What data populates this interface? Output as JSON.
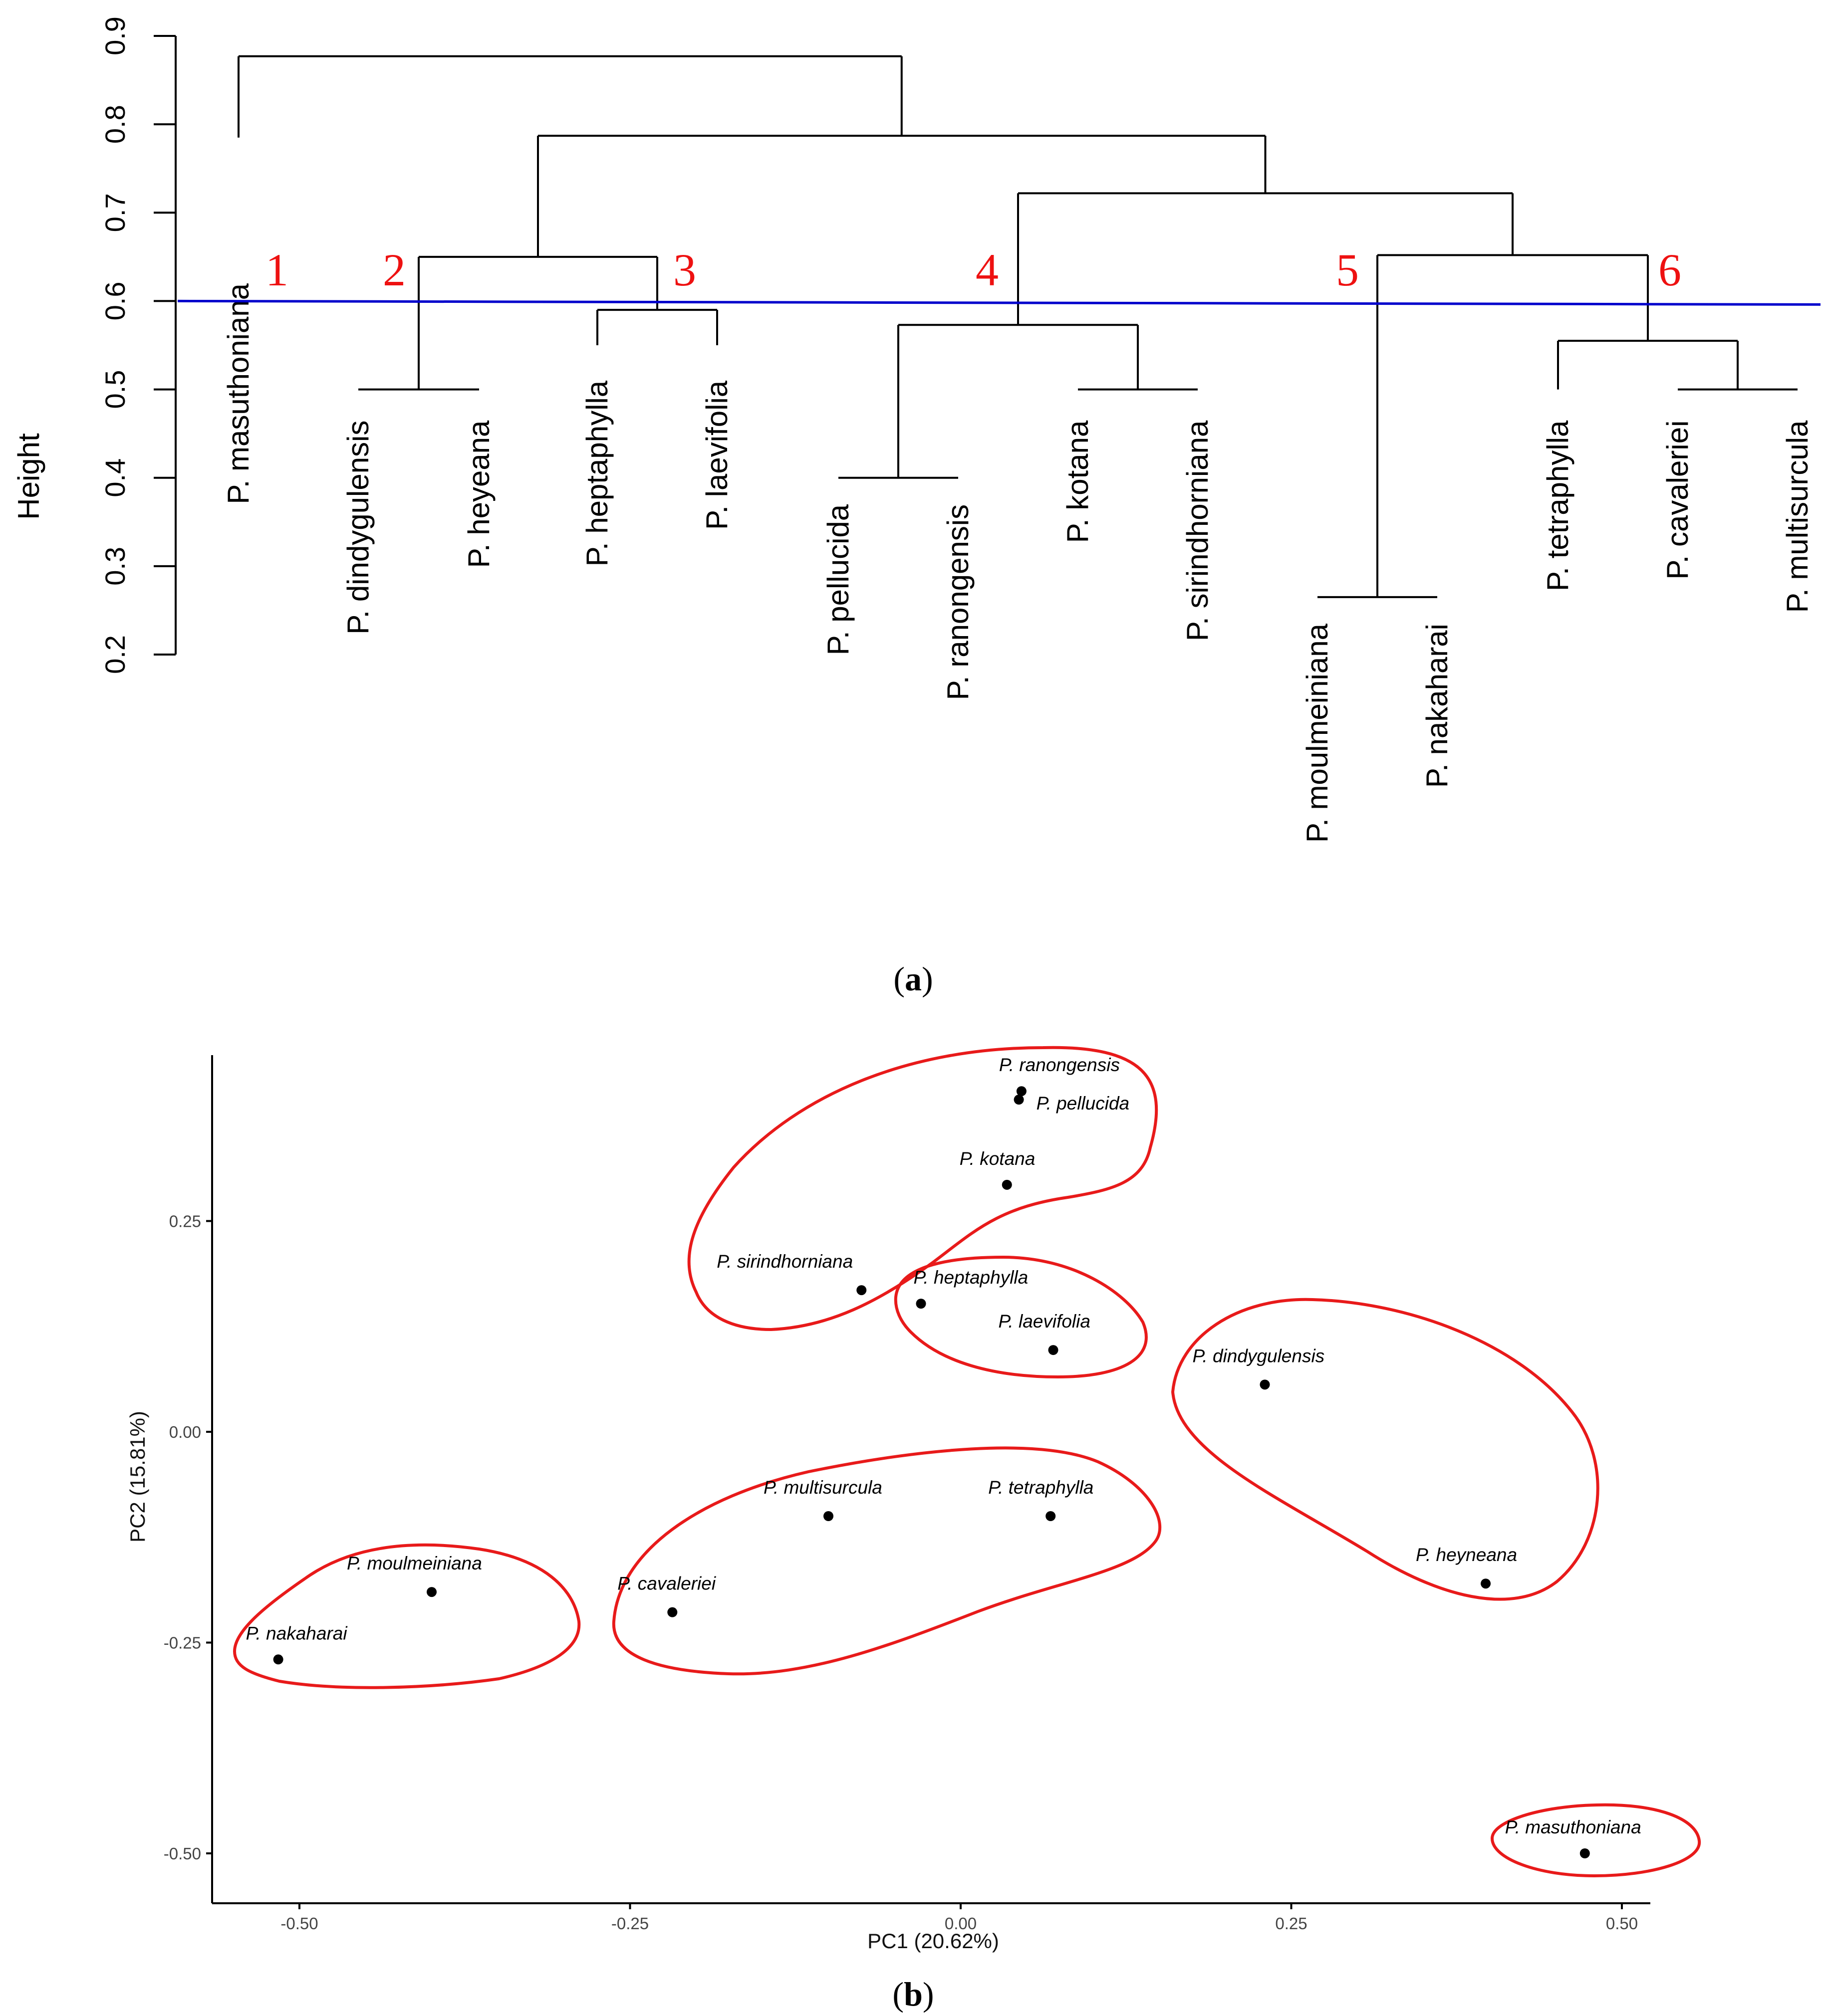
{
  "panel_a_label": "a",
  "panel_b_label": "b",
  "chart_data": [
    {
      "type": "dendrogram",
      "ylabel": "Height",
      "ylim": [
        0.2,
        0.9
      ],
      "yticks": [
        "0.2",
        "0.3",
        "0.4",
        "0.5",
        "0.6",
        "0.7",
        "0.8",
        "0.9"
      ],
      "cut_height": 0.6,
      "leaves": [
        "P. masuthoniana",
        "P. dindygulensis",
        "P. heyeana",
        "P. heptaphylla",
        "P. laevifolia",
        "P. pellucida",
        "P. ranongensis",
        "P. kotana",
        "P. sirindhorniana",
        "P. moulmeiniana",
        "P. nakaharai",
        "P. tetraphylla",
        "P. cavaleriei",
        "P. multisurcula"
      ],
      "merges": [
        {
          "a": "P. dindygulensis",
          "b": "P. heyeana",
          "height": 0.5
        },
        {
          "a": "P. heptaphylla",
          "b": "P. laevifolia",
          "height": 0.59
        },
        {
          "a": "P. pellucida",
          "b": "P. ranongensis",
          "height": 0.4
        },
        {
          "a": "P. kotana",
          "b": "P. sirindhorniana",
          "height": 0.5
        },
        {
          "a": "P. moulmeiniana",
          "b": "P. nakaharai",
          "height": 0.265
        },
        {
          "a": "P. cavaleriei",
          "b": "P. multisurcula",
          "height": 0.5
        },
        {
          "a": "m1",
          "b": "m2",
          "height": 0.65
        },
        {
          "a": "m3",
          "b": "m4",
          "height": 0.573
        },
        {
          "a": "P. tetraphylla",
          "b": "m6",
          "height": 0.555
        },
        {
          "a": "m5",
          "b": "m9",
          "height": 0.652
        },
        {
          "a": "m8",
          "b": "m10",
          "height": 0.722
        },
        {
          "a": "m7",
          "b": "m11",
          "height": 0.787
        },
        {
          "a": "P. masuthoniana",
          "b": "m12",
          "height": 0.877
        }
      ],
      "cluster_labels": [
        "1",
        "2",
        "3",
        "4",
        "5",
        "6"
      ]
    },
    {
      "type": "scatter",
      "xlabel": "PC1 (20.62%)",
      "ylabel": "PC2 (15.81%)",
      "xlim": [
        -0.56,
        0.52
      ],
      "ylim": [
        -0.56,
        0.44
      ],
      "xticks": [
        "-0.50",
        "-0.25",
        "0.00",
        "0.25",
        "0.50"
      ],
      "yticks": [
        "-0.50",
        "-0.25",
        "0.00",
        "0.25"
      ],
      "points": [
        {
          "label": "P. ranongensis",
          "x": 0.046,
          "y": 0.404
        },
        {
          "label": "P. pellucida",
          "x": 0.044,
          "y": 0.394
        },
        {
          "label": "P. kotana",
          "x": 0.035,
          "y": 0.293
        },
        {
          "label": "P. sirindhorniana",
          "x": -0.075,
          "y": 0.168
        },
        {
          "label": "P. heptaphylla",
          "x": -0.03,
          "y": 0.152
        },
        {
          "label": "P. laevifolia",
          "x": 0.07,
          "y": 0.097
        },
        {
          "label": "P. dindygulensis",
          "x": 0.23,
          "y": 0.056
        },
        {
          "label": "P. multisurcula",
          "x": -0.1,
          "y": -0.1
        },
        {
          "label": "P. tetraphylla",
          "x": 0.068,
          "y": -0.1
        },
        {
          "label": "P. cavaleriei",
          "x": -0.218,
          "y": -0.214
        },
        {
          "label": "P. heyneana",
          "x": 0.397,
          "y": -0.18
        },
        {
          "label": "P. moulmeiniana",
          "x": -0.4,
          "y": -0.19
        },
        {
          "label": "P. nakaharai",
          "x": -0.516,
          "y": -0.27
        },
        {
          "label": "P. masuthoniana",
          "x": 0.472,
          "y": -0.5
        }
      ],
      "groups": [
        [
          "P. ranongensis",
          "P. pellucida",
          "P. kotana",
          "P. sirindhorniana"
        ],
        [
          "P. heptaphylla",
          "P. laevifolia"
        ],
        [
          "P. dindygulensis",
          "P. heyneana"
        ],
        [
          "P. multisurcula",
          "P. tetraphylla",
          "P. cavaleriei"
        ],
        [
          "P. moulmeiniana",
          "P. nakaharai"
        ],
        [
          "P. masuthoniana"
        ]
      ]
    }
  ]
}
